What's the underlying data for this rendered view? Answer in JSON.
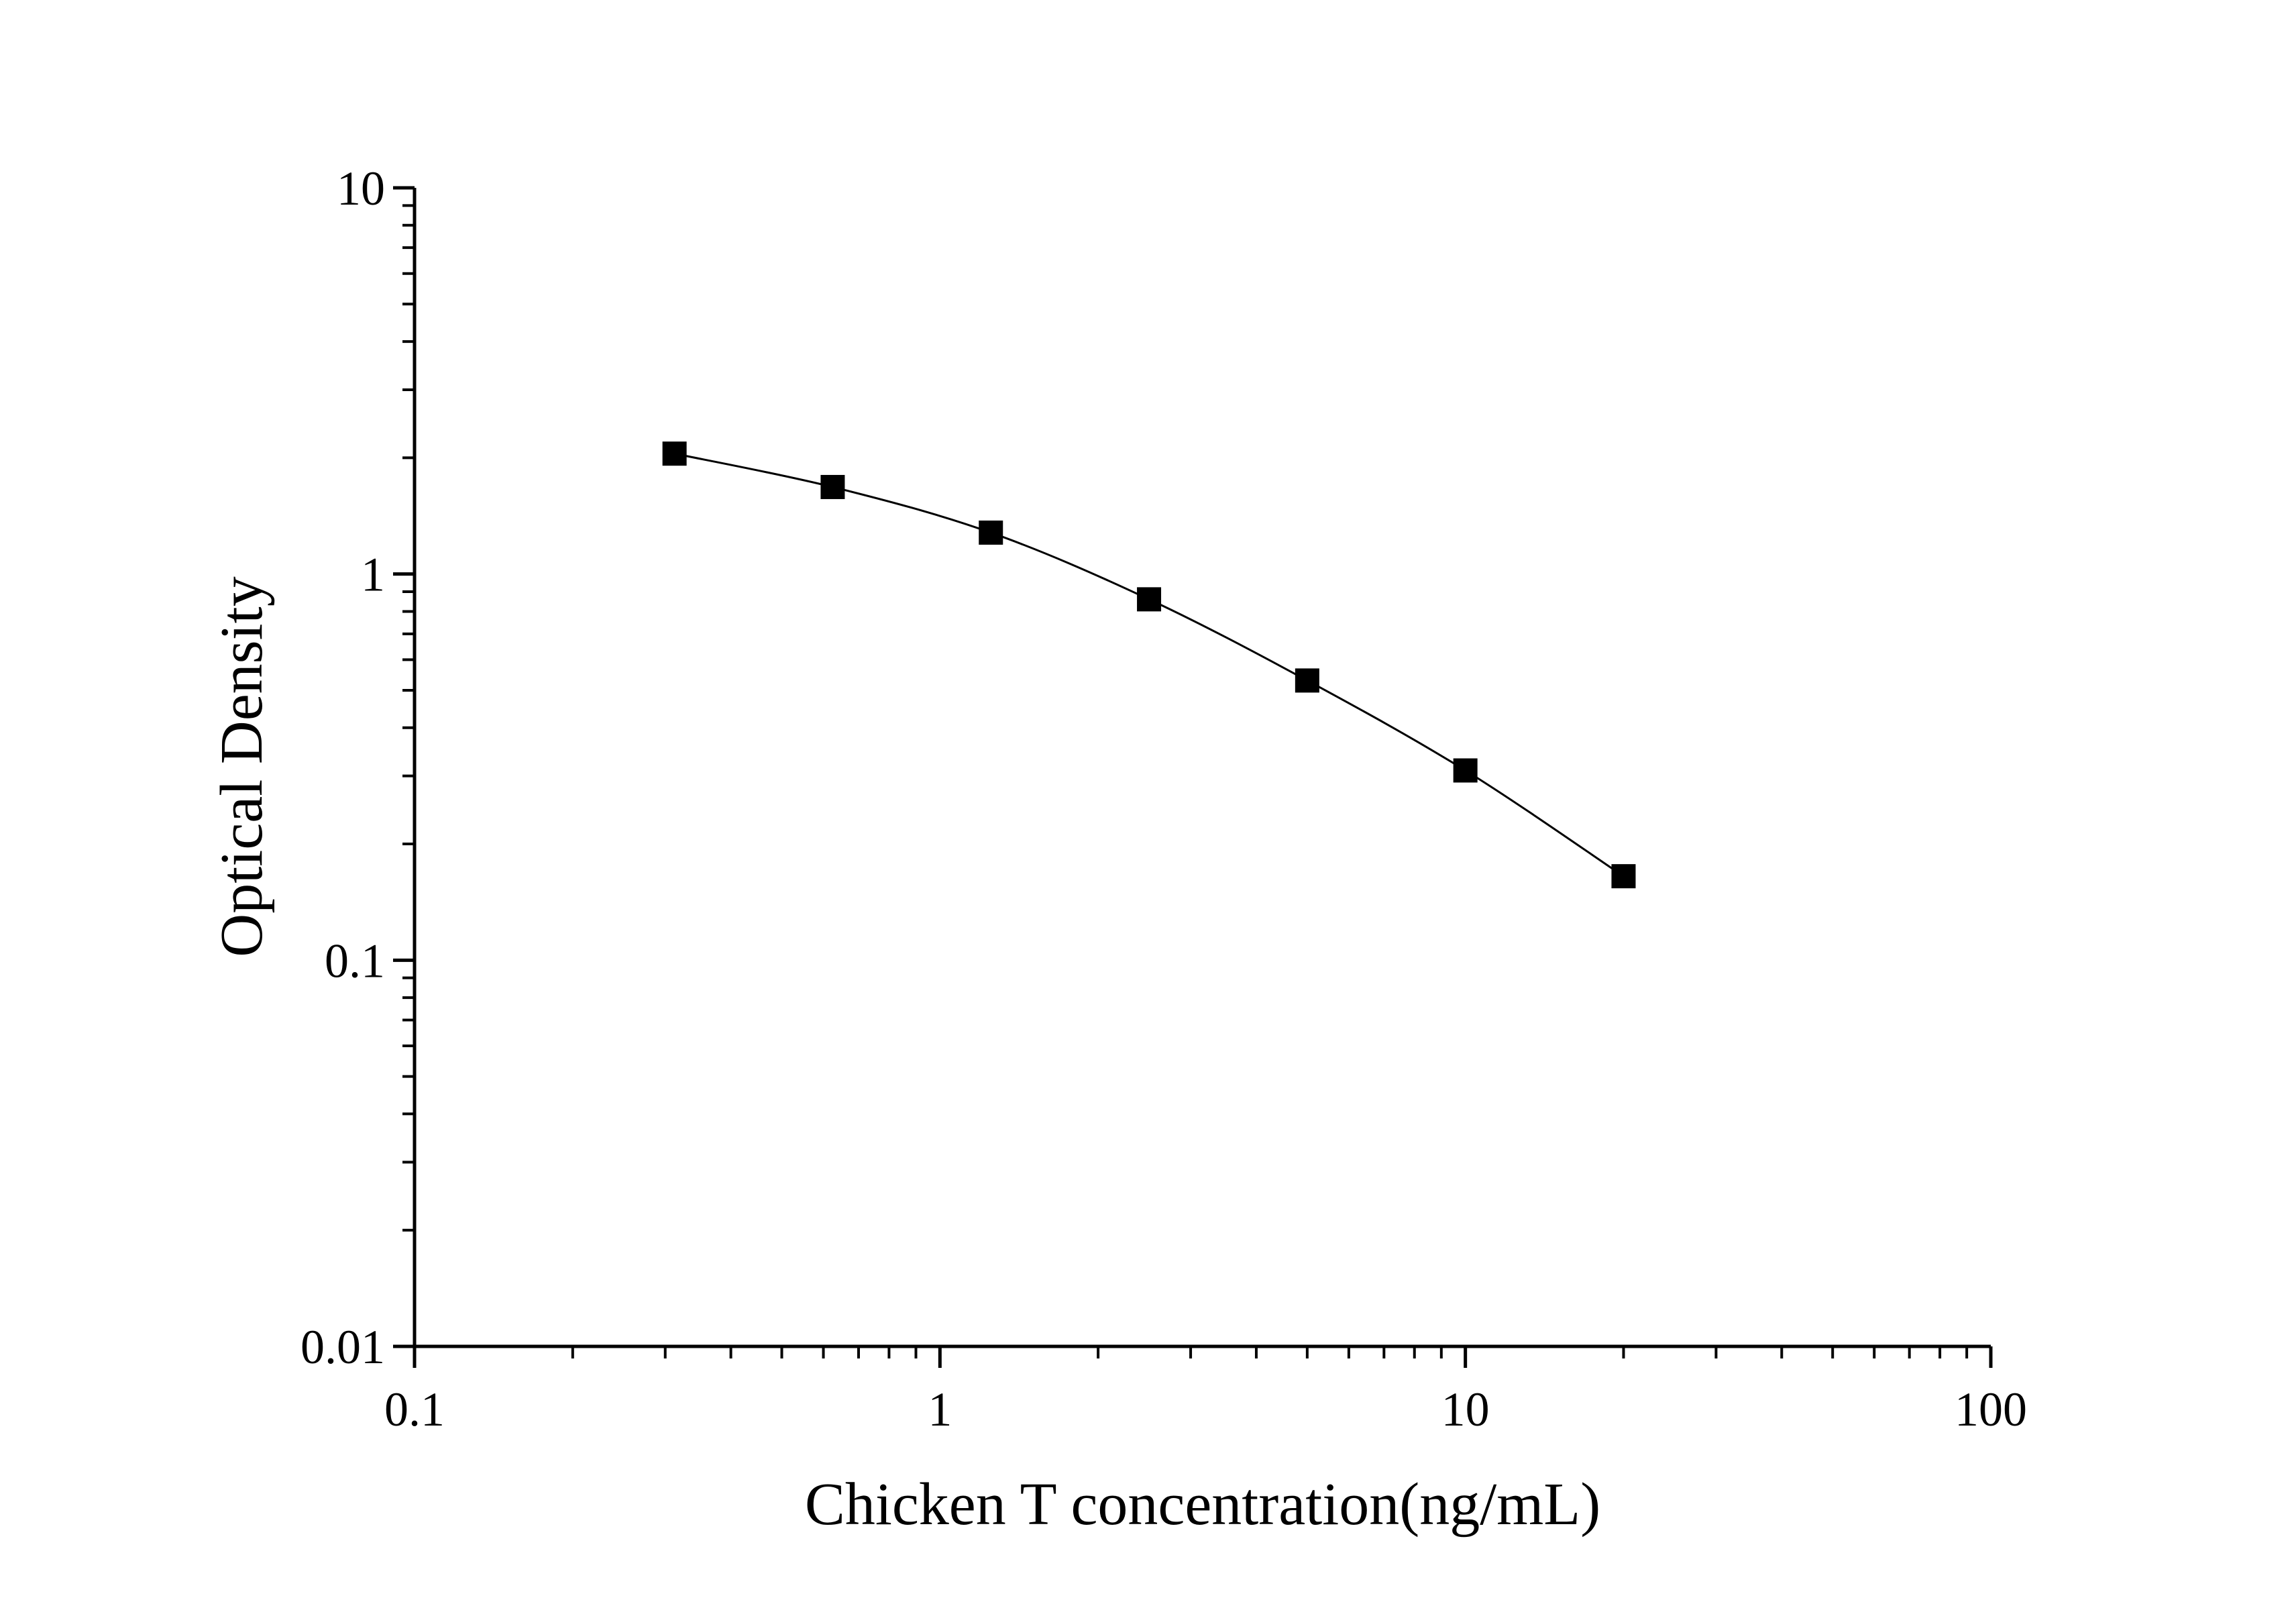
{
  "chart_data": {
    "type": "line",
    "title": "",
    "xlabel": "Chicken T concentration(ng/mL)",
    "ylabel": "Optical Density",
    "x_scale": "log",
    "y_scale": "log",
    "xlim": [
      0.1,
      100
    ],
    "ylim": [
      0.01,
      10
    ],
    "x_ticks": [
      {
        "value": 0.1,
        "label": "0.1"
      },
      {
        "value": 1,
        "label": "1"
      },
      {
        "value": 10,
        "label": "10"
      },
      {
        "value": 100,
        "label": "100"
      }
    ],
    "y_ticks": [
      {
        "value": 0.01,
        "label": "0.01"
      },
      {
        "value": 0.1,
        "label": "0.1"
      },
      {
        "value": 1,
        "label": "1"
      },
      {
        "value": 10,
        "label": "10"
      }
    ],
    "grid": false,
    "legend": "none",
    "series": [
      {
        "marker": "square",
        "color": "#000000",
        "points": [
          {
            "x": 0.3125,
            "y": 2.05
          },
          {
            "x": 0.625,
            "y": 1.68
          },
          {
            "x": 1.25,
            "y": 1.28
          },
          {
            "x": 2.5,
            "y": 0.86
          },
          {
            "x": 5,
            "y": 0.53
          },
          {
            "x": 10,
            "y": 0.31
          },
          {
            "x": 20,
            "y": 0.165
          }
        ]
      }
    ]
  }
}
